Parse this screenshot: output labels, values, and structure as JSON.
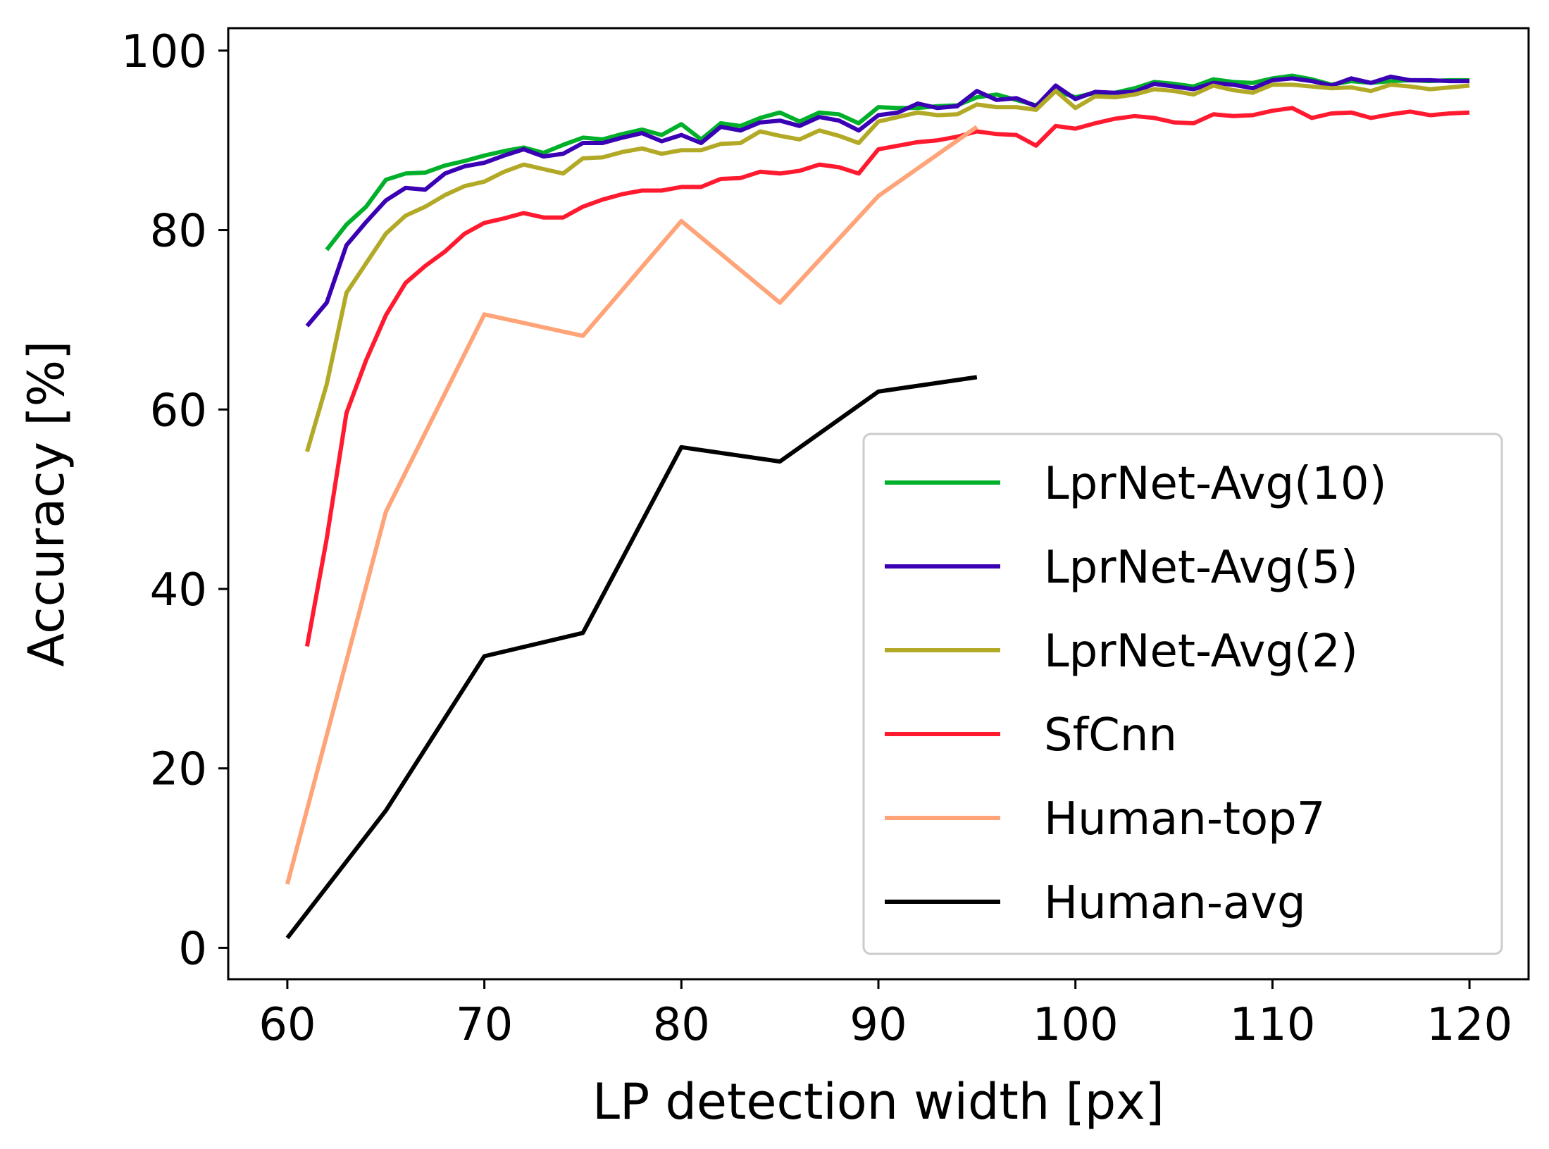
{
  "chart_data": {
    "type": "line",
    "title": "",
    "xlabel": "LP detection width [px]",
    "ylabel": "Accuracy [%]",
    "xlim": [
      57,
      123
    ],
    "ylim": [
      -3.5,
      102.5
    ],
    "xticks": [
      60,
      70,
      80,
      90,
      100,
      110,
      120
    ],
    "yticks": [
      0,
      20,
      40,
      60,
      80,
      100
    ],
    "grid": false,
    "legend": "lower-right",
    "series": [
      {
        "name": "LprNet-Avg(10)",
        "color": "#00b02a",
        "x": [
          62,
          63,
          64,
          65,
          66,
          67,
          68,
          69,
          70,
          71,
          72,
          73,
          74,
          75,
          76,
          77,
          78,
          79,
          80,
          81,
          82,
          83,
          84,
          85,
          86,
          87,
          88,
          89,
          90,
          91,
          92,
          93,
          94,
          95,
          96,
          97,
          98,
          99,
          100,
          101,
          102,
          103,
          104,
          105,
          106,
          107,
          108,
          109,
          110,
          111,
          112,
          113,
          114,
          115,
          116,
          117,
          118,
          119,
          120
        ],
        "y": [
          77.8,
          80.6,
          82.6,
          85.6,
          86.3,
          86.4,
          87.2,
          87.7,
          88.3,
          88.8,
          89.2,
          88.6,
          89.5,
          90.3,
          90.1,
          90.7,
          91.2,
          90.6,
          91.8,
          90.1,
          91.9,
          91.6,
          92.5,
          93.1,
          92.1,
          93.1,
          92.9,
          91.9,
          93.7,
          93.6,
          93.6,
          93.8,
          93.9,
          94.8,
          95.1,
          94.5,
          93.9,
          95.5,
          94.8,
          95.3,
          95.3,
          95.8,
          96.5,
          96.3,
          96.0,
          96.8,
          96.5,
          96.4,
          96.9,
          97.2,
          96.8,
          96.2,
          96.6,
          96.4,
          96.6,
          96.7,
          96.6,
          96.7,
          96.7
        ]
      },
      {
        "name": "LprNet-Avg(5)",
        "color": "#3a00b4",
        "x": [
          61,
          62,
          63,
          64,
          65,
          66,
          67,
          68,
          69,
          70,
          71,
          72,
          73,
          74,
          75,
          76,
          77,
          78,
          79,
          80,
          81,
          82,
          83,
          84,
          85,
          86,
          87,
          88,
          89,
          90,
          91,
          92,
          93,
          94,
          95,
          96,
          97,
          98,
          99,
          100,
          101,
          102,
          103,
          104,
          105,
          106,
          107,
          108,
          109,
          110,
          111,
          112,
          113,
          114,
          115,
          116,
          117,
          118,
          119,
          120
        ],
        "y": [
          69.3,
          71.9,
          78.3,
          80.9,
          83.3,
          84.7,
          84.5,
          86.3,
          87.1,
          87.5,
          88.3,
          89.0,
          88.2,
          88.5,
          89.7,
          89.7,
          90.3,
          90.8,
          89.9,
          90.6,
          89.7,
          91.5,
          91.1,
          92.0,
          92.2,
          91.6,
          92.6,
          92.2,
          91.1,
          92.8,
          93.1,
          94.1,
          93.6,
          93.8,
          95.5,
          94.5,
          94.7,
          93.8,
          96.1,
          94.6,
          95.4,
          95.3,
          95.4,
          96.3,
          96.0,
          95.7,
          96.4,
          96.2,
          95.8,
          96.7,
          96.9,
          96.6,
          96.1,
          96.9,
          96.4,
          97.1,
          96.7,
          96.7,
          96.6,
          96.6
        ]
      },
      {
        "name": "LprNet-Avg(2)",
        "color": "#b2aa27",
        "x": [
          61,
          62,
          63,
          64,
          65,
          66,
          67,
          68,
          69,
          70,
          71,
          72,
          73,
          74,
          75,
          76,
          77,
          78,
          79,
          80,
          81,
          82,
          83,
          84,
          85,
          86,
          87,
          88,
          89,
          90,
          91,
          92,
          93,
          94,
          95,
          96,
          97,
          98,
          99,
          100,
          101,
          102,
          103,
          104,
          105,
          106,
          107,
          108,
          109,
          110,
          111,
          112,
          113,
          114,
          115,
          116,
          117,
          118,
          119,
          120
        ],
        "y": [
          55.3,
          62.8,
          73.0,
          76.3,
          79.6,
          81.6,
          82.6,
          83.9,
          84.9,
          85.4,
          86.5,
          87.3,
          86.8,
          86.3,
          88.0,
          88.1,
          88.7,
          89.1,
          88.5,
          88.9,
          88.9,
          89.6,
          89.7,
          91.0,
          90.5,
          90.1,
          91.1,
          90.5,
          89.7,
          92.1,
          92.6,
          93.1,
          92.8,
          92.9,
          94.0,
          93.7,
          93.7,
          93.4,
          95.5,
          93.6,
          94.9,
          94.8,
          95.1,
          95.7,
          95.5,
          95.1,
          96.1,
          95.6,
          95.3,
          96.2,
          96.2,
          96.0,
          95.8,
          95.9,
          95.5,
          96.2,
          96.0,
          95.7,
          95.9,
          96.1
        ]
      },
      {
        "name": "SfCnn",
        "color": "#ff1a30",
        "x": [
          61,
          62,
          63,
          64,
          65,
          66,
          67,
          68,
          69,
          70,
          71,
          72,
          73,
          74,
          75,
          76,
          77,
          78,
          79,
          80,
          81,
          82,
          83,
          84,
          85,
          86,
          87,
          88,
          89,
          90,
          91,
          92,
          93,
          94,
          95,
          96,
          97,
          98,
          99,
          100,
          101,
          102,
          103,
          104,
          105,
          106,
          107,
          108,
          109,
          110,
          111,
          112,
          113,
          114,
          115,
          116,
          117,
          118,
          119,
          120
        ],
        "y": [
          33.6,
          45.6,
          59.6,
          65.5,
          70.5,
          74.1,
          76.0,
          77.6,
          79.6,
          80.8,
          81.3,
          81.9,
          81.4,
          81.4,
          82.6,
          83.4,
          84.0,
          84.4,
          84.4,
          84.8,
          84.8,
          85.7,
          85.8,
          86.5,
          86.3,
          86.6,
          87.3,
          87.0,
          86.3,
          89.0,
          89.4,
          89.8,
          90.0,
          90.4,
          91.0,
          90.7,
          90.6,
          89.4,
          91.6,
          91.3,
          91.9,
          92.4,
          92.7,
          92.5,
          92.0,
          91.9,
          92.9,
          92.7,
          92.8,
          93.3,
          93.6,
          92.5,
          93.0,
          93.1,
          92.5,
          92.9,
          93.2,
          92.8,
          93.0,
          93.1
        ]
      },
      {
        "name": "Human-top7",
        "color": "#ffa478",
        "x": [
          60,
          65,
          70,
          75,
          80,
          85,
          90,
          95
        ],
        "y": [
          7.1,
          48.6,
          70.6,
          68.2,
          81.0,
          71.9,
          83.8,
          91.5
        ]
      },
      {
        "name": "Human-avg",
        "color": "#000000",
        "x": [
          60,
          65,
          70,
          75,
          80,
          85,
          90,
          95
        ],
        "y": [
          1.1,
          15.3,
          32.5,
          35.1,
          55.8,
          54.2,
          62.0,
          63.6
        ]
      }
    ]
  }
}
